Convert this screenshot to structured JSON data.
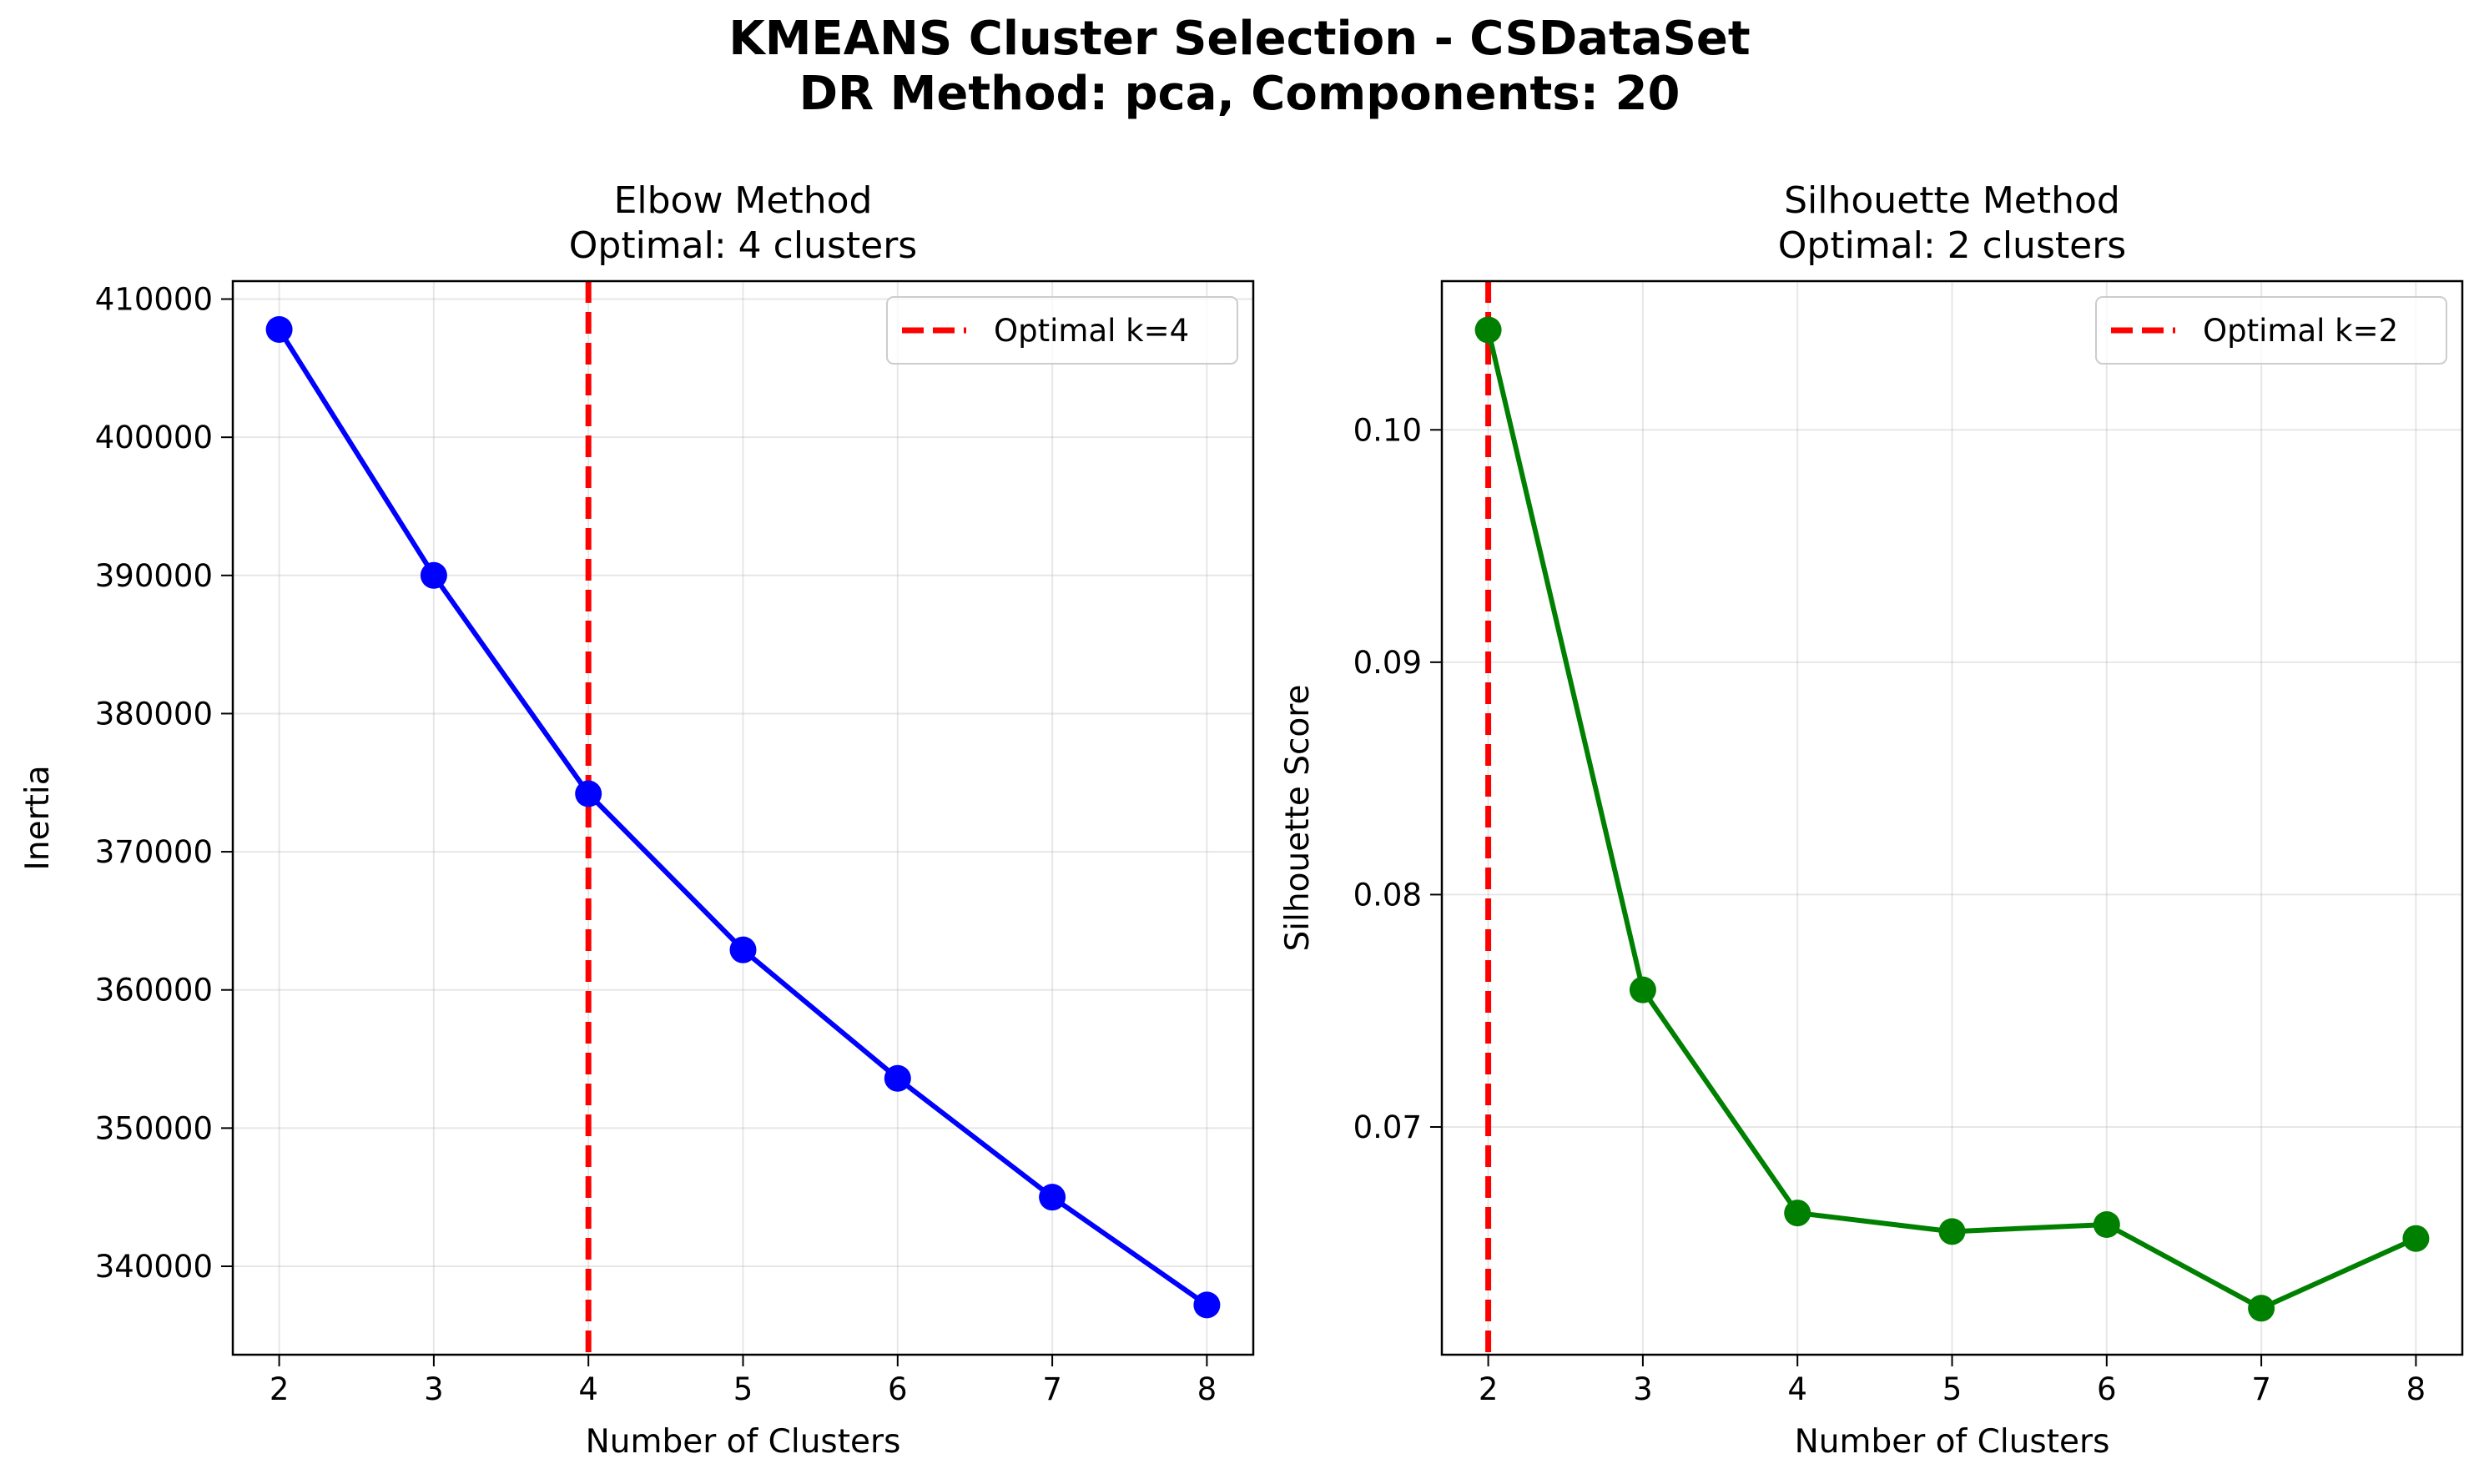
{
  "figure": {
    "title_line1": "KMEANS Cluster Selection - CSDataSet",
    "title_line2": "DR Method: pca, Components: 20"
  },
  "chart_data": [
    {
      "type": "line",
      "title_line1": "Elbow Method",
      "title_line2": "Optimal: 4 clusters",
      "xlabel": "Number of Clusters",
      "ylabel": "Inertia",
      "x": [
        2,
        3,
        4,
        5,
        6,
        7,
        8
      ],
      "series": [
        {
          "values": [
            407800,
            390000,
            374200,
            362900,
            353600,
            345000,
            337200
          ],
          "color": "#0000ff",
          "marker": "circle"
        }
      ],
      "xlim": [
        1.7,
        8.3
      ],
      "ylim": [
        333600,
        411300
      ],
      "xticks": [
        2,
        3,
        4,
        5,
        6,
        7,
        8
      ],
      "yticks": [
        340000,
        350000,
        360000,
        370000,
        380000,
        390000,
        400000,
        410000
      ],
      "optimal": {
        "x": 4,
        "label": "Optimal k=4",
        "color": "#ff0000",
        "style": "dashed"
      },
      "legend": "top-right",
      "grid": true
    },
    {
      "type": "line",
      "title_line1": "Silhouette Method",
      "title_line2": "Optimal: 2 clusters",
      "xlabel": "Number of Clusters",
      "ylabel": "Silhouette Score",
      "x": [
        2,
        3,
        4,
        5,
        6,
        7,
        8
      ],
      "series": [
        {
          "values": [
            0.1043,
            0.0759,
            0.0663,
            0.0655,
            0.0658,
            0.0622,
            0.0652
          ],
          "color": "#008000",
          "marker": "circle"
        }
      ],
      "xlim": [
        1.7,
        8.3
      ],
      "ylim": [
        0.0602,
        0.1064
      ],
      "xticks": [
        2,
        3,
        4,
        5,
        6,
        7,
        8
      ],
      "yticks": [
        0.07,
        0.08,
        0.09,
        0.1
      ],
      "ytick_labels": [
        "0.07",
        "0.08",
        "0.09",
        "0.10"
      ],
      "optimal": {
        "x": 2,
        "label": "Optimal k=2",
        "color": "#ff0000",
        "style": "dashed"
      },
      "legend": "top-right",
      "grid": true
    }
  ]
}
